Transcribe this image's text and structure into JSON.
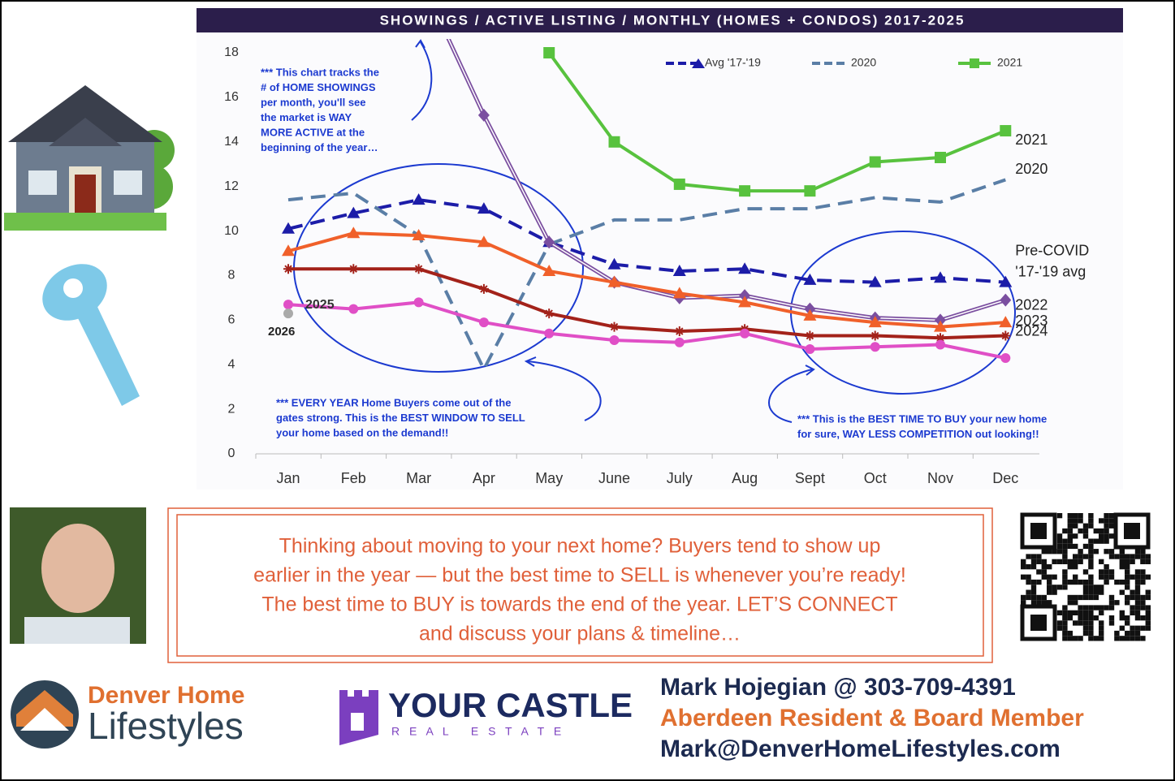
{
  "chart_data": {
    "type": "line",
    "title": "SHOWINGS / ACTIVE LISTING / MONTHLY (HOMES + CONDOS) 2017-2025",
    "categories": [
      "Jan",
      "Feb",
      "Mar",
      "Apr",
      "May",
      "June",
      "July",
      "Aug",
      "Sept",
      "Oct",
      "Nov",
      "Dec"
    ],
    "ylim": [
      0,
      18
    ],
    "yticks": [
      0,
      2,
      4,
      6,
      8,
      10,
      12,
      14,
      16,
      18
    ],
    "grid": false,
    "series": [
      {
        "name": "Avg '17-'19",
        "color": "#1c1ca8",
        "dash": true,
        "marker": "triangle",
        "in_legend": true,
        "end_label": [
          "Pre-COVID",
          "'17-'19 avg"
        ],
        "values": [
          10.1,
          10.8,
          11.4,
          11.0,
          9.5,
          8.5,
          8.2,
          8.3,
          7.8,
          7.7,
          7.9,
          7.7
        ]
      },
      {
        "name": "2020",
        "color": "#5a7ea6",
        "dash": true,
        "marker": "none",
        "in_legend": true,
        "values": [
          11.4,
          11.7,
          9.8,
          3.8,
          9.4,
          10.5,
          10.5,
          11.0,
          11.0,
          11.5,
          11.3,
          12.3
        ]
      },
      {
        "name": "2021",
        "color": "#58c23e",
        "dash": false,
        "marker": "square",
        "in_legend": true,
        "values": [
          null,
          null,
          null,
          null,
          18.0,
          14.0,
          12.1,
          11.8,
          11.8,
          13.1,
          13.3,
          14.5
        ]
      },
      {
        "name": "2022",
        "color": "#7b4fa0",
        "dash": false,
        "marker": "diamond",
        "in_legend": false,
        "values": [
          null,
          null,
          21.5,
          15.2,
          9.5,
          7.7,
          7.0,
          7.1,
          6.5,
          6.1,
          6.0,
          6.9
        ]
      },
      {
        "name": "2023",
        "color": "#f0602a",
        "dash": false,
        "marker": "triangle",
        "in_legend": false,
        "values": [
          9.1,
          9.9,
          9.8,
          9.5,
          8.2,
          7.7,
          7.2,
          6.8,
          6.2,
          5.9,
          5.7,
          5.9
        ]
      },
      {
        "name": "2024",
        "color": "#a3221a",
        "dash": false,
        "marker": "asterisk",
        "in_legend": false,
        "values": [
          8.3,
          8.3,
          8.3,
          7.4,
          6.3,
          5.7,
          5.5,
          5.6,
          5.3,
          5.3,
          5.2,
          5.3
        ]
      },
      {
        "name": "2025",
        "color": "#e04fc6",
        "dash": false,
        "marker": "circle",
        "in_legend": false,
        "values": [
          6.7,
          6.5,
          6.8,
          5.9,
          5.4,
          5.1,
          5.0,
          5.4,
          4.7,
          4.8,
          4.9,
          4.3
        ]
      },
      {
        "name": "2026",
        "color": "#aaaaaa",
        "dash": false,
        "marker": "circle",
        "in_legend": false,
        "values": [
          6.3,
          null,
          null,
          null,
          null,
          null,
          null,
          null,
          null,
          null,
          null,
          null
        ]
      }
    ],
    "annotations": [
      [
        "*** This chart tracks the",
        "# of HOME SHOWINGS",
        "per month, you'll see",
        "the market is WAY",
        "MORE ACTIVE at the",
        "beginning of the year…"
      ],
      [
        "*** EVERY YEAR Home Buyers come out of the",
        "gates strong. This is the BEST WINDOW TO SELL",
        "your home based on the demand!!"
      ],
      [
        "*** This is the BEST TIME TO BUY your new home",
        "for sure, WAY LESS COMPETITION out looking!!"
      ]
    ]
  },
  "message": [
    "Thinking about moving to your next home? Buyers tend to show up",
    "earlier in the year — but the best time to SELL is whenever you’re ready!",
    "The best time to BUY is towards the end of the year.  LET’S CONNECT",
    "and discuss your plans & timeline…"
  ],
  "logos": {
    "denver": [
      "Denver Home",
      "Lifestyles"
    ],
    "castle": [
      "YOUR CASTLE",
      "R E A L   E S T A T E"
    ]
  },
  "contact": [
    "Mark Hojegian @ 303-709-4391",
    "Aberdeen Resident & Board Member",
    "Mark@DenverHomeLifestyles.com"
  ]
}
